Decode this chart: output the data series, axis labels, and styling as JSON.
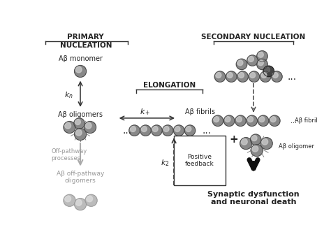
{
  "bg_color": "#ffffff",
  "dark_text": "#222222",
  "gray_text": "#999999",
  "arrow_color": "#333333",
  "gray_arrow_color": "#aaaaaa",
  "labels": {
    "primary_nucleation": "PRIMARY\nNUCLEATION",
    "secondary_nucleation": "SECONDARY NUCLEATION",
    "elongation": "ELONGATION",
    "ab_monomer": "Aβ monomer",
    "ab_oligomers": "Aβ oligomers",
    "ab_fibrils": "Aβ fibrils",
    "off_pathway_processes": "Off-pathway\nprocesses",
    "ab_off_pathway": "Aβ off-pathway\noligomers",
    "positive_feedback": "Positive\nfeedback",
    "synaptic": "Synaptic dysfunction\nand neuronal death",
    "kn": "$k_n$",
    "kplus": "$k_+$",
    "k2": "$k_2$",
    "ab_fibril_label": "Aβ fibril",
    "ab_oligomer_label": "Aβ oligomer",
    "plus": "+",
    "dots": "..."
  }
}
